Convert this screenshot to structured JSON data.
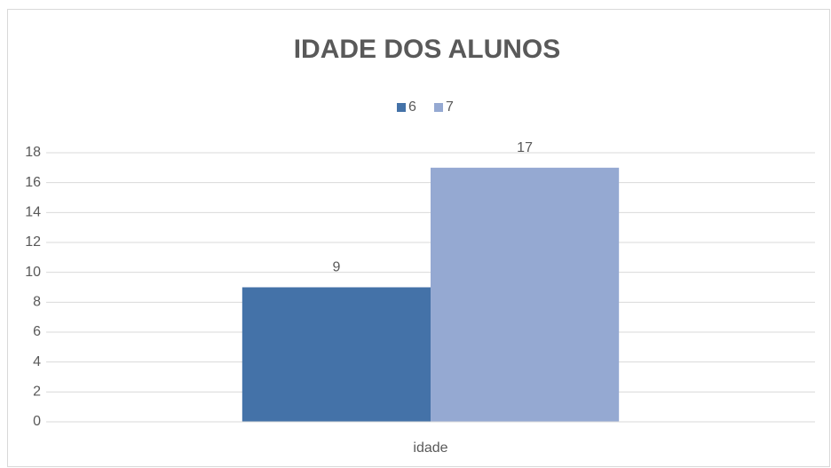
{
  "chart_data": {
    "type": "bar",
    "title": "IDADE DOS ALUNOS",
    "categories": [
      "idade"
    ],
    "series": [
      {
        "name": "6",
        "color": "#4472a8",
        "values": [
          9
        ]
      },
      {
        "name": "7",
        "color": "#95a9d2",
        "values": [
          17
        ]
      }
    ],
    "ylim": [
      0,
      18
    ],
    "yticks": [
      0,
      2,
      4,
      6,
      8,
      10,
      12,
      14,
      16,
      18
    ],
    "grid": true,
    "legend": "top",
    "data_labels": true
  }
}
